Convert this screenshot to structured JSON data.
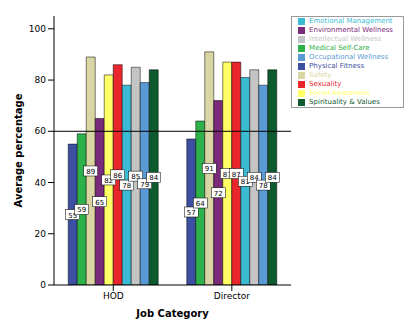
{
  "chart_data": {
    "type": "bar",
    "x_label": "Job Category",
    "y_label": "Average percentage",
    "categories": [
      "HOD",
      "Director"
    ],
    "series": [
      {
        "name": "Physical Fitness",
        "color": "#3c4fa0",
        "values": [
          55,
          57
        ]
      },
      {
        "name": "Medical Self-Care",
        "color": "#2db14a",
        "values": [
          59,
          64
        ]
      },
      {
        "name": "Safety",
        "color": "#d9d6a3",
        "values": [
          89,
          91
        ]
      },
      {
        "name": "Environmental Wellness",
        "color": "#7a2a7a",
        "values": [
          65,
          72
        ]
      },
      {
        "name": "Social Awareness",
        "color": "#ffff66",
        "values": [
          82,
          87
        ]
      },
      {
        "name": "Sexuality",
        "color": "#e8262b",
        "values": [
          86,
          87
        ]
      },
      {
        "name": "Emotional Management",
        "color": "#3bbbd3",
        "values": [
          78,
          81
        ]
      },
      {
        "name": "Intellectual Wellness",
        "color": "#c4c4c4",
        "values": [
          85,
          84
        ]
      },
      {
        "name": "Occupational Wellness",
        "color": "#5a9bd5",
        "values": [
          79,
          78
        ]
      },
      {
        "name": "Spirituality & Values",
        "color": "#0d5a2e",
        "values": [
          84,
          84
        ]
      }
    ],
    "ylim": [
      0,
      105
    ],
    "yticks": [
      0,
      20,
      40,
      60,
      80,
      100
    ],
    "reference_line": 60,
    "grid": false,
    "legend": "top-right",
    "data_labels": true
  }
}
